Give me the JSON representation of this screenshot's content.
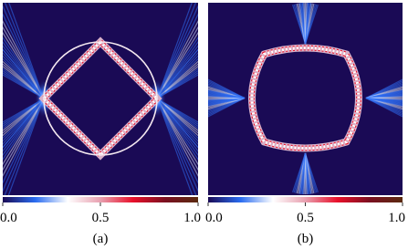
{
  "chart_data": [
    {
      "type": "heatmap",
      "caption": "(a)",
      "colorbar_lim": [
        0,
        1
      ],
      "colorbar_ticks": [
        {
          "value": 0,
          "label": "0.0"
        },
        {
          "value": 0.5,
          "label": "0.5"
        },
        {
          "value": 1,
          "label": "1.0"
        }
      ],
      "colormap": [
        "#1a0a55",
        "#2a6cf0",
        "#ffffff",
        "#e8a0b0",
        "#e8102a",
        "#7a1020",
        "#5a2a10"
      ]
    },
    {
      "type": "heatmap",
      "caption": "(b)",
      "colorbar_lim": [
        0,
        1
      ],
      "colorbar_ticks": [
        {
          "value": 0,
          "label": "0.0"
        },
        {
          "value": 0.5,
          "label": "0.5"
        },
        {
          "value": 1,
          "label": "1.0"
        }
      ],
      "colormap": [
        "#1a0a55",
        "#2a6cf0",
        "#ffffff",
        "#e8a0b0",
        "#e8102a",
        "#7a1020",
        "#5a2a10"
      ]
    }
  ]
}
